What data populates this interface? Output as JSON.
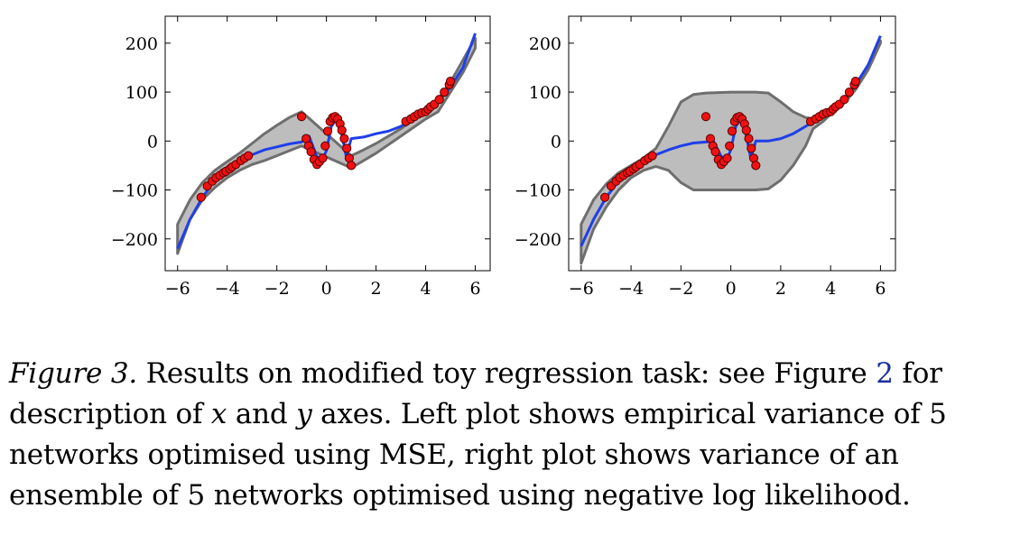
{
  "chart_data": [
    {
      "type": "line",
      "panel": "left",
      "xlim": [
        -6.5,
        6.6
      ],
      "ylim": [
        -265,
        255
      ],
      "x_ticks": [
        -6,
        -4,
        -2,
        0,
        2,
        4,
        6
      ],
      "x_tick_labels": [
        "−6",
        "−4",
        "−2",
        "0",
        "2",
        "4",
        "6"
      ],
      "y_ticks": [
        -200,
        -100,
        0,
        100,
        200
      ],
      "y_tick_labels": [
        "−200",
        "−100",
        "0",
        "100",
        "200"
      ],
      "mean_line": {
        "x": [
          -6,
          -5.5,
          -5,
          -4.5,
          -4,
          -3.5,
          -3,
          -2.5,
          -2,
          -1.5,
          -1,
          -0.7,
          -0.4,
          -0.2,
          0,
          0.2,
          0.4,
          0.6,
          0.8,
          1,
          1.5,
          2,
          2.5,
          3,
          3.5,
          4,
          4.5,
          5,
          5.5,
          6
        ],
        "y": [
          -220,
          -160,
          -115,
          -80,
          -60,
          -42,
          -28,
          -18,
          -12,
          -6,
          -2,
          10,
          -30,
          -42,
          -20,
          30,
          45,
          18,
          -32,
          5,
          8,
          15,
          20,
          30,
          45,
          60,
          80,
          110,
          150,
          220
        ]
      },
      "band_upper": {
        "x": [
          -6,
          -5.5,
          -5,
          -4.5,
          -4,
          -3.5,
          -3,
          -2.5,
          -2,
          -1.5,
          -1,
          1,
          1.5,
          2,
          3,
          4,
          4.5,
          5,
          5.5,
          6
        ],
        "y": [
          -170,
          -120,
          -85,
          -60,
          -42,
          -25,
          -5,
          15,
          32,
          48,
          60,
          -30,
          -18,
          -5,
          25,
          60,
          85,
          120,
          165,
          210
        ]
      },
      "band_lower": {
        "x": [
          -6,
          -5.5,
          -5,
          -4.5,
          -4,
          -3.5,
          -3,
          -2.5,
          -2,
          -1.5,
          -1,
          1,
          1.5,
          2,
          3,
          4,
          4.5,
          5,
          5.5,
          6
        ],
        "y": [
          -230,
          -160,
          -120,
          -95,
          -75,
          -60,
          -48,
          -40,
          -30,
          -20,
          -10,
          -55,
          -40,
          -25,
          10,
          45,
          60,
          100,
          140,
          190
        ]
      },
      "points": {
        "x": [
          -5.05,
          -4.8,
          -4.6,
          -4.45,
          -4.3,
          -4.15,
          -4.05,
          -3.9,
          -3.8,
          -3.65,
          -3.45,
          -3.3,
          -3.15,
          -1.0,
          -0.82,
          -0.72,
          -0.62,
          -0.5,
          -0.38,
          -0.28,
          -0.15,
          -0.05,
          0.05,
          0.15,
          0.25,
          0.35,
          0.45,
          0.55,
          0.62,
          0.72,
          0.82,
          0.92,
          1.0,
          3.2,
          3.4,
          3.55,
          3.7,
          3.85,
          4.0,
          4.1,
          4.2,
          4.35,
          4.55,
          4.75,
          4.95,
          5.0
        ],
        "y": [
          -115,
          -92,
          -82,
          -75,
          -70,
          -65,
          -62,
          -57,
          -53,
          -48,
          -40,
          -35,
          -30,
          50,
          5,
          -10,
          -22,
          -38,
          -48,
          -42,
          -35,
          -10,
          20,
          40,
          48,
          50,
          45,
          35,
          22,
          5,
          -15,
          -35,
          -50,
          40,
          45,
          50,
          55,
          58,
          60,
          65,
          70,
          75,
          85,
          100,
          115,
          122
        ]
      }
    },
    {
      "type": "line",
      "panel": "right",
      "xlim": [
        -6.5,
        6.6
      ],
      "ylim": [
        -265,
        255
      ],
      "x_ticks": [
        -6,
        -4,
        -2,
        0,
        2,
        4,
        6
      ],
      "x_tick_labels": [
        "−6",
        "−4",
        "−2",
        "0",
        "2",
        "4",
        "6"
      ],
      "y_ticks": [
        -200,
        -100,
        0,
        100,
        200
      ],
      "y_tick_labels": [
        "−200",
        "−100",
        "0",
        "100",
        "200"
      ],
      "mean_line": {
        "x": [
          -6,
          -5.5,
          -5,
          -4.5,
          -4,
          -3.5,
          -3,
          -2.5,
          -2,
          -1.5,
          -1.0,
          -0.7,
          -0.4,
          -0.2,
          0,
          0.2,
          0.4,
          0.6,
          0.8,
          1.0,
          1.5,
          2,
          2.5,
          3,
          3.5,
          4,
          4.5,
          5,
          5.5,
          6
        ],
        "y": [
          -215,
          -160,
          -115,
          -82,
          -60,
          -42,
          -28,
          -18,
          -10,
          -4,
          -2,
          0,
          -30,
          -42,
          -18,
          30,
          45,
          15,
          -35,
          0,
          0,
          5,
          15,
          30,
          45,
          60,
          85,
          115,
          155,
          215
        ]
      },
      "band_upper": {
        "x": [
          -6,
          -5.5,
          -5,
          -4.5,
          -4,
          -3.5,
          -3,
          -2.5,
          -2,
          -1.5,
          -1,
          0,
          1,
          1.5,
          2,
          2.5,
          3,
          3.3,
          3.7,
          4,
          4.5,
          5,
          5.5,
          6
        ],
        "y": [
          -170,
          -120,
          -88,
          -65,
          -50,
          -35,
          -15,
          30,
          80,
          95,
          98,
          100,
          100,
          98,
          80,
          60,
          48,
          45,
          50,
          60,
          80,
          110,
          150,
          205
        ]
      },
      "band_lower": {
        "x": [
          -6,
          -5.5,
          -5,
          -4.5,
          -4,
          -3.5,
          -3,
          -2.5,
          -2,
          -1.5,
          -1,
          0,
          1,
          1.5,
          2,
          2.5,
          3,
          3.3,
          3.7,
          4,
          4.5,
          5,
          5.5,
          6
        ],
        "y": [
          -250,
          -180,
          -135,
          -100,
          -75,
          -60,
          -52,
          -60,
          -85,
          -100,
          -100,
          -100,
          -100,
          -98,
          -80,
          -50,
          -10,
          25,
          40,
          55,
          75,
          105,
          145,
          200
        ]
      },
      "points": {
        "x": [
          -5.05,
          -4.8,
          -4.6,
          -4.45,
          -4.3,
          -4.15,
          -4.05,
          -3.9,
          -3.8,
          -3.65,
          -3.45,
          -3.3,
          -3.15,
          -1.0,
          -0.82,
          -0.72,
          -0.62,
          -0.5,
          -0.38,
          -0.28,
          -0.15,
          -0.05,
          0.05,
          0.15,
          0.25,
          0.35,
          0.45,
          0.55,
          0.62,
          0.72,
          0.82,
          0.92,
          1.0,
          3.2,
          3.4,
          3.55,
          3.7,
          3.85,
          4.0,
          4.1,
          4.2,
          4.35,
          4.55,
          4.75,
          4.95,
          5.0
        ],
        "y": [
          -115,
          -92,
          -82,
          -75,
          -70,
          -65,
          -62,
          -57,
          -53,
          -48,
          -40,
          -35,
          -30,
          50,
          5,
          -10,
          -22,
          -38,
          -48,
          -42,
          -35,
          -10,
          20,
          40,
          48,
          50,
          45,
          35,
          22,
          5,
          -15,
          -35,
          -50,
          40,
          45,
          50,
          55,
          58,
          60,
          65,
          70,
          75,
          85,
          100,
          115,
          122
        ]
      }
    }
  ],
  "colors": {
    "mean_line": "#1f3fe8",
    "band_fill": "#bdbdbd",
    "band_edge": "#6e6e6e",
    "point_fill": "#ee1111",
    "point_edge": "#5a0000",
    "link": "#1a2fa0"
  },
  "caption": {
    "label": "Figure 3.",
    "part1": " Results on modified toy regression task: see Figure ",
    "ref": "2",
    "part2": " for description of ",
    "x_var": "x",
    "part3": " and ",
    "y_var": "y",
    "part4": " axes. Left plot shows empirical variance of 5 networks optimised using MSE, right plot shows variance of an ensemble of 5 networks optimised using negative log likelihood."
  }
}
